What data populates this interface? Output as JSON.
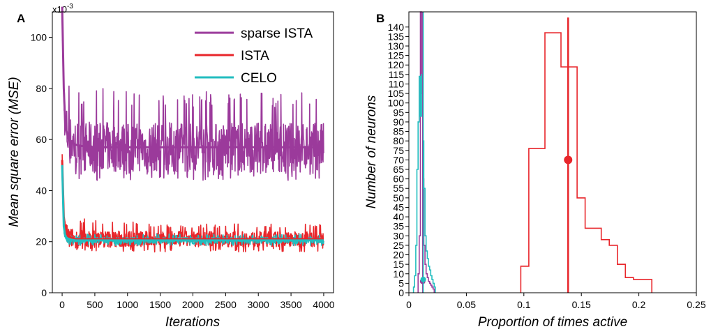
{
  "chart_data": [
    {
      "type": "line",
      "panel_label": "A",
      "xlabel": "Iterations",
      "ylabel": "Mean square error (MSE)",
      "y_multiplier_label": "x10",
      "y_multiplier_exp": "-3",
      "xlim": [
        -150,
        4150
      ],
      "ylim": [
        0,
        110
      ],
      "xticks": [
        0,
        500,
        1000,
        1500,
        2000,
        2500,
        3000,
        3500,
        4000
      ],
      "yticks": [
        0,
        20,
        40,
        60,
        80,
        100
      ],
      "legend_position": "top-right",
      "series": [
        {
          "name": "sparse ISTA",
          "color": "#9b3a9b",
          "x": [
            0,
            25,
            50,
            100,
            200,
            400,
            700,
            1000,
            1500,
            2000,
            2500,
            3000,
            3500,
            4000
          ],
          "y": [
            112,
            80,
            65,
            60,
            58,
            57,
            57,
            57,
            57,
            57,
            57,
            57,
            57,
            57
          ],
          "band_low": [
            68,
            60,
            52,
            47,
            45,
            44,
            44,
            44,
            44,
            44,
            44,
            44,
            44,
            44
          ],
          "band_high": [
            112,
            100,
            88,
            83,
            80,
            80,
            80,
            79,
            79,
            79,
            79,
            79,
            79,
            79
          ]
        },
        {
          "name": "ISTA",
          "color": "#e8262b",
          "x": [
            0,
            25,
            50,
            100,
            200,
            400,
            700,
            1000,
            1500,
            2000,
            2500,
            3000,
            3500,
            4000
          ],
          "y": [
            52,
            30,
            24,
            22,
            21,
            21,
            21,
            21,
            21,
            21,
            21,
            21,
            21,
            21
          ],
          "band_low": [
            40,
            22,
            19,
            18,
            17,
            16,
            16,
            16,
            16,
            16,
            16,
            16,
            16,
            16
          ],
          "band_high": [
            54,
            36,
            33,
            32,
            30,
            29,
            28,
            28,
            27,
            27,
            27,
            27,
            27,
            27
          ]
        },
        {
          "name": "CELO",
          "color": "#22bdbf",
          "x": [
            0,
            25,
            50,
            100,
            200,
            400,
            700,
            1000,
            1500,
            2000,
            2500,
            3000,
            3500,
            4000
          ],
          "y": [
            50,
            26,
            22,
            21,
            20.5,
            20.5,
            20.5,
            20.5,
            20.5,
            20.5,
            20.5,
            20.5,
            20.5,
            20.5
          ],
          "band_low": [
            46,
            22,
            20,
            19,
            18.5,
            18.5,
            18.5,
            18.5,
            18.5,
            18.5,
            18.5,
            18.5,
            18.5,
            18.5
          ],
          "band_high": [
            54,
            30,
            25,
            24,
            23,
            23,
            23,
            23,
            23,
            23,
            23,
            23,
            23,
            23
          ]
        }
      ]
    },
    {
      "type": "histogram-step",
      "panel_label": "B",
      "xlabel": "Proportion of times active",
      "ylabel": "Number of neurons",
      "xlim": [
        0,
        0.25
      ],
      "ylim": [
        0,
        148
      ],
      "xticks": [
        0,
        0.05,
        0.1,
        0.15,
        0.2,
        0.25
      ],
      "xtick_labels": [
        "0",
        "0.05",
        "0.1",
        "0.15",
        "0.2",
        "0.25"
      ],
      "yticks": [
        0,
        5,
        10,
        15,
        20,
        25,
        30,
        35,
        40,
        45,
        50,
        55,
        60,
        65,
        70,
        75,
        80,
        85,
        90,
        95,
        100,
        105,
        110,
        115,
        120,
        125,
        130,
        135,
        140
      ],
      "series": [
        {
          "name": "ISTA",
          "color": "#e8262b",
          "bin_edges": [
            0.0973,
            0.1043,
            0.1113,
            0.1183,
            0.1253,
            0.1323,
            0.1393,
            0.1463,
            0.1533,
            0.1603,
            0.1673,
            0.1743,
            0.1813,
            0.1883,
            0.1953,
            0.2023,
            0.2113
          ],
          "counts": [
            14,
            76,
            76,
            137,
            137,
            119,
            119,
            50,
            34,
            34,
            28,
            25,
            15,
            8,
            7,
            7
          ],
          "mean": 0.1385,
          "mean_marker_y": 70,
          "mean_line_top": 145
        },
        {
          "name": "sparse ISTA",
          "color": "#9b3a9b",
          "bin_edges": [
            0.008,
            0.009,
            0.01,
            0.011,
            0.012,
            0.013,
            0.014,
            0.015,
            0.016,
            0.017,
            0.018,
            0.019,
            0.02,
            0.021,
            0.022
          ],
          "counts": [
            10,
            30,
            148,
            105,
            60,
            25,
            15,
            10,
            8,
            6,
            5,
            4,
            3,
            2
          ],
          "mean": 0.012,
          "mean_marker_y": 6
        },
        {
          "name": "CELO",
          "color": "#22bdbf",
          "bin_edges": [
            0.004,
            0.005,
            0.006,
            0.007,
            0.008,
            0.009,
            0.01,
            0.011,
            0.012,
            0.013,
            0.014,
            0.015,
            0.016,
            0.017,
            0.018,
            0.019,
            0.02,
            0.021,
            0.022,
            0.023
          ],
          "counts": [
            3,
            9,
            25,
            65,
            90,
            114,
            93,
            115,
            80,
            55,
            30,
            22,
            18,
            14,
            12,
            9,
            7,
            5,
            3
          ],
          "mean": 0.0125,
          "mean_marker_y": 7
        }
      ]
    }
  ]
}
